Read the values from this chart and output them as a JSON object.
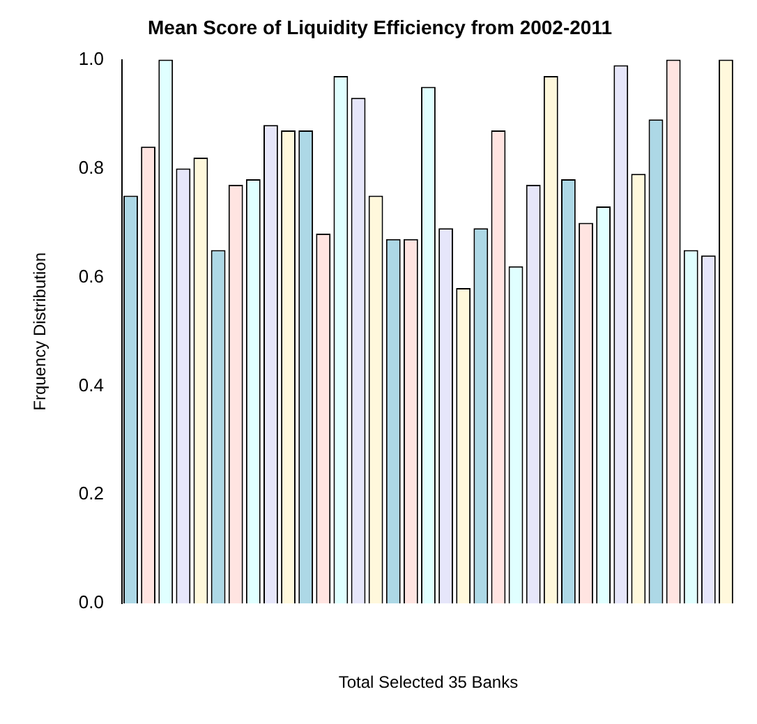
{
  "chart_data": {
    "type": "bar",
    "title": "Mean Score of Liquidity Efficiency from 2002-2011",
    "xlabel": "Total Selected 35 Banks",
    "ylabel": "Frquency Distribution",
    "categories": [
      null,
      null,
      null,
      null,
      null,
      null,
      null,
      null,
      null,
      null,
      null,
      null,
      null,
      null,
      null,
      null,
      null,
      null,
      null,
      null,
      null,
      null,
      null,
      null,
      null,
      null,
      null,
      null,
      null,
      null,
      null,
      null,
      null,
      null,
      null
    ],
    "values": [
      0.75,
      0.84,
      1.0,
      0.8,
      0.82,
      0.65,
      0.77,
      0.78,
      0.88,
      0.87,
      0.87,
      0.68,
      0.97,
      0.93,
      0.75,
      0.67,
      0.67,
      0.95,
      0.69,
      0.58,
      0.69,
      0.87,
      0.62,
      0.77,
      0.97,
      0.78,
      0.7,
      0.73,
      0.99,
      0.79,
      0.89,
      1.0,
      0.65,
      0.64,
      1.0
    ],
    "colors": [
      "#add8e6",
      "#ffe4e1",
      "#e0ffff",
      "#e6e6fa",
      "#fff8dc",
      "#add8e6",
      "#ffe4e1",
      "#e0ffff",
      "#e6e6fa",
      "#fff8dc",
      "#add8e6",
      "#ffe4e1",
      "#e0ffff",
      "#e6e6fa",
      "#fff8dc",
      "#add8e6",
      "#ffe4e1",
      "#e0ffff",
      "#e6e6fa",
      "#fff8dc",
      "#add8e6",
      "#ffe4e1",
      "#e0ffff",
      "#e6e6fa",
      "#fff8dc",
      "#add8e6",
      "#ffe4e1",
      "#e0ffff",
      "#e6e6fa",
      "#fff8dc",
      "#add8e6",
      "#ffe4e1",
      "#e0ffff",
      "#e6e6fa",
      "#fff8dc"
    ],
    "ylim": [
      0,
      1
    ],
    "yticks": [
      {
        "value": 0,
        "label": "0.0"
      },
      0.2,
      0.4,
      0.6,
      0.8,
      {
        "value": 1,
        "label": "1.0"
      }
    ],
    "grid": false,
    "legend": false
  }
}
